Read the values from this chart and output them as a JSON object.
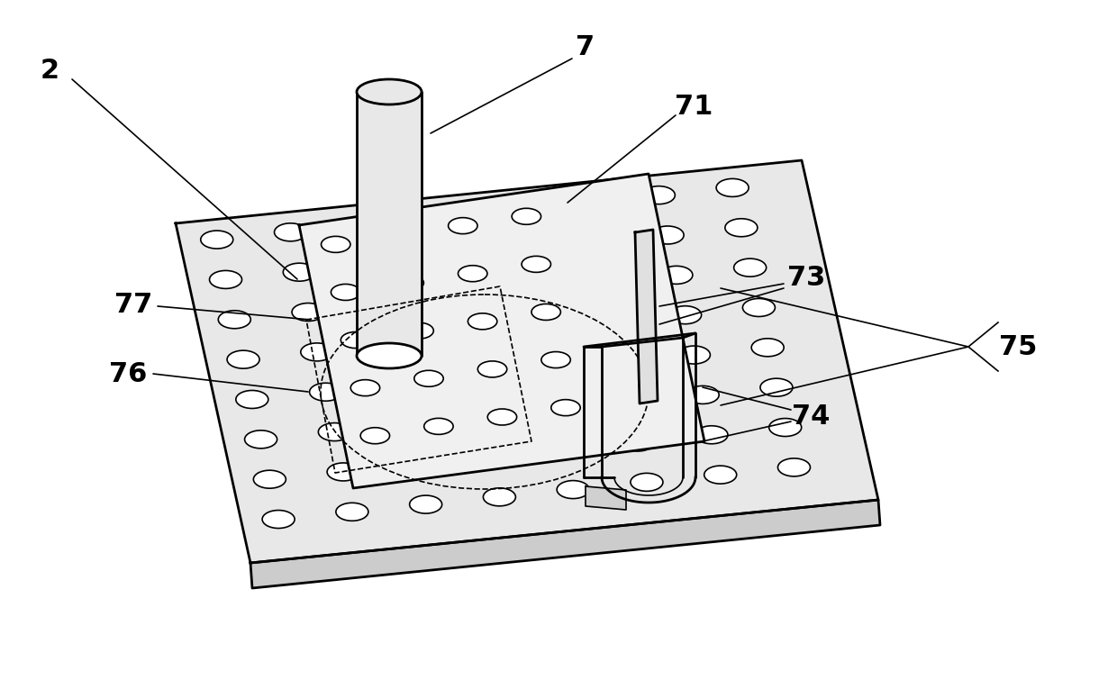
{
  "bg_color": "#ffffff",
  "line_color": "#000000",
  "lw_main": 2.0,
  "lw_thin": 1.2,
  "label_fontsize": 22,
  "label_fontweight": "bold",
  "plate_top_color": "#e8e8e8",
  "plate_side_color": "#cccccc",
  "upper_plate_color": "#f0f0f0",
  "cyl_color": "#e8e8e8",
  "hole_color": "#ffffff"
}
